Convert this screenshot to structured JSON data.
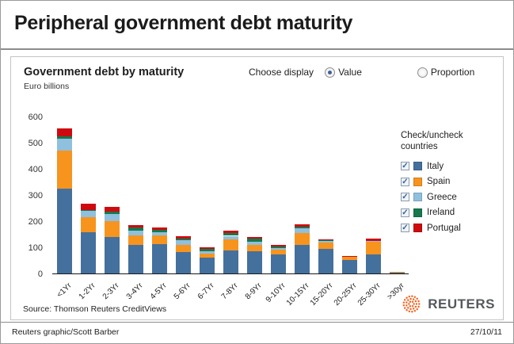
{
  "masthead": {
    "title": "Peripheral government debt maturity"
  },
  "panel": {
    "subtitle": "Government debt by maturity",
    "units": "Euro billions",
    "display_control": {
      "label": "Choose display",
      "options": [
        {
          "label": "Value",
          "selected": true
        },
        {
          "label": "Proportion",
          "selected": false
        }
      ]
    },
    "legend": {
      "heading_line1": "Check/uncheck",
      "heading_line2": "countries"
    },
    "source": "Source: Thomson Reuters CreditViews"
  },
  "footer": {
    "credit": "Reuters graphic/Scott Barber",
    "date": "27/10/11",
    "logo_text": "REUTERS"
  },
  "colors": {
    "logo_orange": "#f26522",
    "axis": "#1a1a1a",
    "radio_selected": "#3e5f9e",
    "checkmark": "#3b5fa0"
  },
  "chart_data": {
    "type": "bar",
    "stacked": true,
    "title": "Government debt by maturity",
    "ylabel": "Euro billions",
    "xlabel": "",
    "ylim": [
      0,
      600
    ],
    "yticks": [
      0,
      100,
      200,
      300,
      400,
      500,
      600
    ],
    "grid": false,
    "legend_position": "right",
    "categories": [
      "<1Yr",
      "1-2Yr",
      "2-3Yr",
      "3-4Yr",
      "4-5Yr",
      "5-6Yr",
      "6-7Yr",
      "7-8Yr",
      "8-9Yr",
      "9-10Yr",
      "10-15Yr",
      "15-20Yr",
      "20-25Yr",
      "25-30Yr",
      ">30yr"
    ],
    "series": [
      {
        "name": "Italy",
        "color": "#44709d",
        "checked": true,
        "values": [
          325,
          158,
          140,
          108,
          112,
          82,
          62,
          88,
          84,
          74,
          108,
          95,
          52,
          72,
          3
        ]
      },
      {
        "name": "Spain",
        "color": "#f7941e",
        "checked": true,
        "values": [
          145,
          58,
          60,
          38,
          34,
          28,
          14,
          42,
          26,
          18,
          48,
          22,
          12,
          48,
          1
        ]
      },
      {
        "name": "Greece",
        "color": "#8fc0dd",
        "checked": true,
        "values": [
          45,
          22,
          28,
          18,
          12,
          18,
          8,
          14,
          10,
          6,
          18,
          8,
          2,
          4,
          0
        ]
      },
      {
        "name": "Ireland",
        "color": "#15794d",
        "checked": true,
        "values": [
          8,
          4,
          8,
          12,
          8,
          6,
          10,
          10,
          14,
          4,
          4,
          1,
          0,
          0,
          0
        ]
      },
      {
        "name": "Portugal",
        "color": "#cf0a0f",
        "checked": true,
        "values": [
          32,
          24,
          20,
          10,
          10,
          8,
          5,
          10,
          5,
          6,
          10,
          4,
          2,
          9,
          0
        ]
      }
    ]
  }
}
